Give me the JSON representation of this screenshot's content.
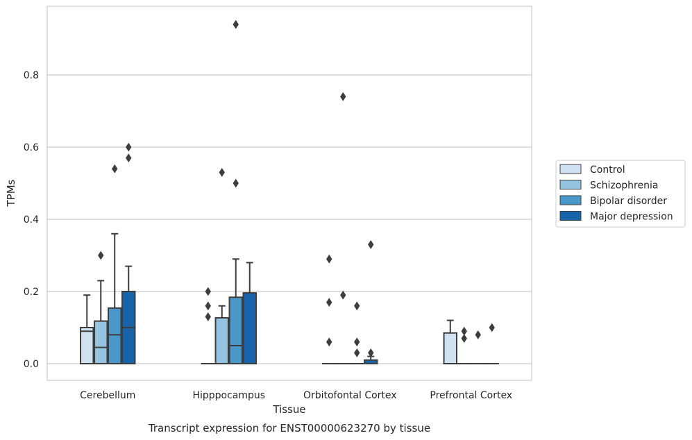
{
  "chart_data": {
    "type": "box",
    "title": "",
    "caption": "Transcript expression for ENST00000623270 by tissue",
    "xlabel": "Tissue",
    "ylabel": "TPMs",
    "ylim": [
      -0.045,
      0.99
    ],
    "yticks": [
      0.0,
      0.2,
      0.4,
      0.6,
      0.8
    ],
    "ytick_labels": [
      "0.0",
      "0.2",
      "0.4",
      "0.6",
      "0.8"
    ],
    "grid": "horizontal",
    "legend_placement": "center-right",
    "categories": [
      "Cerebellum",
      "Hipppocampus",
      "Orbitofontal Cortex",
      "Prefrontal Cortex"
    ],
    "series": [
      {
        "name": "Control",
        "color": "#d0e1f2",
        "boxes": [
          {
            "q1": 0.0,
            "median": 0.09,
            "q3": 0.1,
            "whisker_low": 0.0,
            "whisker_high": 0.19,
            "outliers": []
          },
          {
            "q1": 0.0,
            "median": 0.0,
            "q3": 0.0,
            "whisker_low": 0.0,
            "whisker_high": 0.0,
            "outliers": [
              0.2,
              0.16,
              0.13
            ]
          },
          {
            "q1": 0.0,
            "median": 0.0,
            "q3": 0.0,
            "whisker_low": 0.0,
            "whisker_high": 0.0,
            "outliers": [
              0.29,
              0.17,
              0.06
            ]
          },
          {
            "q1": 0.0,
            "median": 0.0,
            "q3": 0.085,
            "whisker_low": 0.0,
            "whisker_high": 0.12,
            "outliers": []
          }
        ]
      },
      {
        "name": "Schizophrenia",
        "color": "#94c4df",
        "boxes": [
          {
            "q1": 0.0,
            "median": 0.045,
            "q3": 0.118,
            "whisker_low": 0.0,
            "whisker_high": 0.23,
            "outliers": [
              0.3
            ]
          },
          {
            "q1": 0.0,
            "median": 0.0,
            "q3": 0.127,
            "whisker_low": 0.0,
            "whisker_high": 0.16,
            "outliers": [
              0.53
            ]
          },
          {
            "q1": 0.0,
            "median": 0.0,
            "q3": 0.0,
            "whisker_low": 0.0,
            "whisker_high": 0.0,
            "outliers": [
              0.74,
              0.19
            ]
          },
          {
            "q1": 0.0,
            "median": 0.0,
            "q3": 0.0,
            "whisker_low": 0.0,
            "whisker_high": 0.0,
            "outliers": [
              0.09,
              0.07
            ]
          }
        ]
      },
      {
        "name": "Bipolar disorder",
        "color": "#4a98c9",
        "boxes": [
          {
            "q1": 0.0,
            "median": 0.08,
            "q3": 0.154,
            "whisker_low": 0.0,
            "whisker_high": 0.36,
            "outliers": [
              0.54
            ]
          },
          {
            "q1": 0.0,
            "median": 0.05,
            "q3": 0.184,
            "whisker_low": 0.0,
            "whisker_high": 0.29,
            "outliers": [
              0.94,
              0.5
            ]
          },
          {
            "q1": 0.0,
            "median": 0.0,
            "q3": 0.0,
            "whisker_low": 0.0,
            "whisker_high": 0.0,
            "outliers": [
              0.16,
              0.06,
              0.03
            ]
          },
          {
            "q1": 0.0,
            "median": 0.0,
            "q3": 0.0,
            "whisker_low": 0.0,
            "whisker_high": 0.0,
            "outliers": [
              0.08
            ]
          }
        ]
      },
      {
        "name": "Major depression",
        "color": "#1764ab",
        "boxes": [
          {
            "q1": 0.0,
            "median": 0.1,
            "q3": 0.2,
            "whisker_low": 0.0,
            "whisker_high": 0.27,
            "outliers": [
              0.6,
              0.57
            ]
          },
          {
            "q1": 0.0,
            "median": 0.0,
            "q3": 0.196,
            "whisker_low": 0.0,
            "whisker_high": 0.28,
            "outliers": []
          },
          {
            "q1": 0.0,
            "median": 0.0,
            "q3": 0.01,
            "whisker_low": 0.0,
            "whisker_high": 0.02,
            "outliers": [
              0.33,
              0.03
            ]
          },
          {
            "q1": 0.0,
            "median": 0.0,
            "q3": 0.0,
            "whisker_low": 0.0,
            "whisker_high": 0.0,
            "outliers": [
              0.1
            ]
          }
        ]
      }
    ]
  }
}
